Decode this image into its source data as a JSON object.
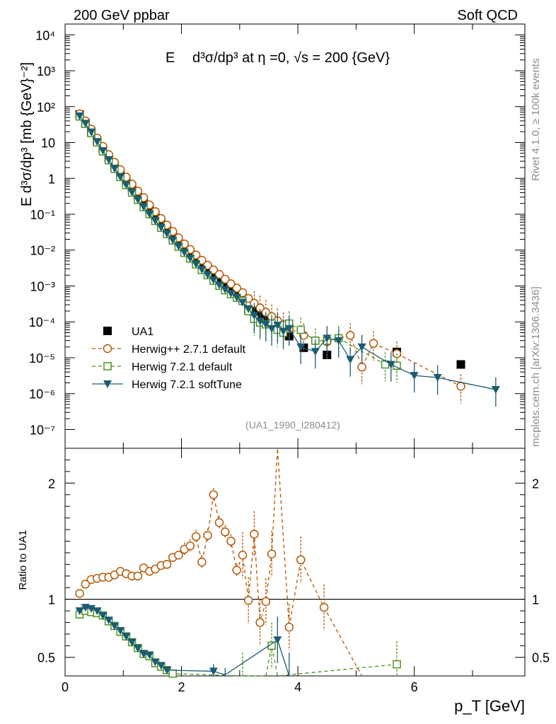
{
  "header": {
    "left": "200 GeV ppbar",
    "right": "Soft QCD"
  },
  "side": {
    "rivet": "Rivet 4.1.0, ≥ 100k events",
    "mcplots": "mcplots.cern.ch [arXiv:1306.3436]"
  },
  "chart_data": {
    "type": "scatter",
    "title_parts": {
      "e": "E",
      "deriv": "d³σ/dp³ at η =0, √s = 200 {GeV}"
    },
    "ylabel": "E d³σ/dp³ [mb {GeV}⁻²]",
    "xlabel": "p_T [GeV]",
    "analysis_tag": "(UA1_1990_I280412)",
    "ratio_ylabel": "Ratio to UA1",
    "xlim": [
      0,
      7.9
    ],
    "ylim_log": [
      3e-08,
      20000
    ],
    "ratio_ylim": [
      0.34,
      2.3
    ],
    "x_ticks": [
      "0",
      "2",
      "4",
      "6"
    ],
    "y_ticks": [
      "10⁴",
      "10³",
      "10²",
      "10",
      "1",
      "10⁻¹",
      "10⁻²",
      "10⁻³",
      "10⁻⁴",
      "10⁻⁵",
      "10⁻⁶",
      "10⁻⁷"
    ],
    "ratio_ticks": [
      "0.5",
      "1",
      "2"
    ],
    "series": [
      {
        "name": "UA1",
        "color": "#000000",
        "marker": "filled-square",
        "x": [
          0.25,
          0.35,
          0.45,
          0.55,
          0.65,
          0.75,
          0.85,
          0.95,
          1.05,
          1.15,
          1.25,
          1.35,
          1.45,
          1.55,
          1.65,
          1.75,
          1.85,
          1.95,
          2.05,
          2.15,
          2.25,
          2.35,
          2.45,
          2.55,
          2.65,
          2.75,
          2.85,
          2.95,
          3.05,
          3.15,
          3.25,
          3.35,
          3.45,
          3.55,
          3.65,
          3.75,
          3.85,
          4.1,
          4.5,
          5.7,
          6.8
        ],
        "y": [
          60,
          35,
          20,
          11,
          6.5,
          3.8,
          2.3,
          1.4,
          0.85,
          0.55,
          0.35,
          0.22,
          0.14,
          0.09,
          0.058,
          0.038,
          0.025,
          0.017,
          0.0115,
          0.0079,
          0.0055,
          0.0039,
          0.0028,
          0.0021,
          0.0016,
          0.0011,
          0.00082,
          0.00062,
          0.00045,
          0.00022,
          0.00019,
          0.00016,
          0.00013,
          0.0001,
          8.5e-05,
          6.7e-05,
          4e-05,
          1.9e-05,
          1.2e-05,
          1.45e-05,
          6.5e-06
        ]
      },
      {
        "name": "Herwig++ 2.7.1 default",
        "color": "#b35806",
        "marker": "open-circle",
        "line": "dashed",
        "x": [
          0.25,
          0.35,
          0.45,
          0.55,
          0.65,
          0.75,
          0.85,
          0.95,
          1.05,
          1.15,
          1.25,
          1.35,
          1.45,
          1.55,
          1.65,
          1.75,
          1.85,
          1.95,
          2.05,
          2.15,
          2.25,
          2.35,
          2.45,
          2.55,
          2.65,
          2.75,
          2.85,
          2.95,
          3.05,
          3.15,
          3.25,
          3.35,
          3.45,
          3.55,
          3.65,
          3.75,
          3.85,
          4.1,
          4.5,
          4.9,
          5.1,
          5.3,
          5.7,
          6.8
        ],
        "y": [
          63,
          40,
          23.5,
          13.3,
          7.8,
          4.6,
          2.8,
          1.75,
          1.08,
          0.69,
          0.44,
          0.29,
          0.182,
          0.118,
          0.076,
          0.05,
          0.033,
          0.022,
          0.0149,
          0.0104,
          0.0073,
          0.0052,
          0.0038,
          0.0028,
          0.0021,
          0.00155,
          0.00115,
          0.00087,
          0.00065,
          0.00045,
          0.00033,
          0.000245,
          0.000185,
          0.00014,
          0.000107,
          8.3e-05,
          6.5e-05,
          4.2e-05,
          2.8e-05,
          4.2e-05,
          5.5e-06,
          2.5e-05,
          1.3e-05,
          1.6e-06
        ],
        "ratio": {
          "x": [
            0.25,
            0.35,
            0.45,
            0.55,
            0.65,
            0.75,
            0.85,
            0.95,
            1.05,
            1.15,
            1.25,
            1.35,
            1.45,
            1.55,
            1.65,
            1.75,
            1.85,
            1.95,
            2.05,
            2.15,
            2.25,
            2.35,
            2.45,
            2.55,
            2.65,
            2.75,
            2.85,
            2.95,
            3.05,
            3.15,
            3.25,
            3.35,
            3.45,
            3.55,
            3.85,
            4.05,
            4.45
          ],
          "y": [
            1.05,
            1.13,
            1.17,
            1.18,
            1.19,
            1.19,
            1.21,
            1.24,
            1.22,
            1.2,
            1.2,
            1.27,
            1.24,
            1.26,
            1.29,
            1.3,
            1.36,
            1.38,
            1.43,
            1.46,
            1.54,
            1.32,
            1.55,
            1.9,
            1.66,
            1.58,
            1.5,
            1.25,
            1.38,
            0.99,
            1.56,
            0.8,
            0.98,
            1.39,
            0.76,
            1.34,
            0.93
          ],
          "extra_points": [
            [
              3.65,
              2.3
            ],
            [
              5.1,
              0.34
            ]
          ]
        }
      },
      {
        "name": "Herwig 7.2.1 default",
        "color": "#4d9221",
        "marker": "open-square",
        "line": "dashed",
        "x": [
          0.25,
          0.35,
          0.45,
          0.55,
          0.65,
          0.75,
          0.85,
          0.95,
          1.05,
          1.15,
          1.25,
          1.35,
          1.45,
          1.55,
          1.65,
          1.75,
          1.85,
          1.95,
          2.05,
          2.15,
          2.25,
          2.35,
          2.45,
          2.55,
          2.65,
          2.75,
          2.85,
          2.95,
          3.05,
          3.15,
          3.25,
          3.35,
          3.45,
          3.55,
          3.65,
          3.75,
          3.85,
          4.05,
          4.3,
          4.5,
          4.7,
          5.5,
          5.7
        ],
        "y": [
          53,
          33,
          18.2,
          10,
          5.6,
          3.2,
          1.85,
          1.09,
          0.65,
          0.4,
          0.25,
          0.158,
          0.1,
          0.065,
          0.042,
          0.028,
          0.0185,
          0.0124,
          0.0084,
          0.0058,
          0.004,
          0.0028,
          0.002,
          0.0014,
          0.00101,
          0.00076,
          0.00059,
          0.00047,
          0.00038,
          0.0002,
          0.00012,
          9.5e-05,
          8.49e-05,
          8.99e-05,
          5.99e-05,
          4.99e-05,
          8.99e-05,
          5.99e-05,
          2.99e-05,
          2.99e-05,
          3.49e-05,
          6.5e-06,
          6e-06
        ],
        "ratio": {
          "x": [
            0.25,
            0.35,
            0.45,
            0.55,
            0.65,
            0.75,
            0.85,
            0.95,
            1.05,
            1.15,
            1.25,
            1.35,
            1.45,
            1.55,
            1.65,
            1.75,
            1.85,
            3.05,
            3.55,
            5.7
          ],
          "y": [
            0.87,
            0.9,
            0.89,
            0.88,
            0.86,
            0.81,
            0.77,
            0.72,
            0.68,
            0.63,
            0.58,
            0.53,
            0.51,
            0.45,
            0.42,
            0.39,
            0.36,
            0.34,
            0.6,
            0.44
          ],
          "extra_points": [
            [
              3.45,
              0.34
            ],
            [
              3.65,
              0.34
            ]
          ]
        }
      },
      {
        "name": "Herwig 7.2.1 softTune",
        "color": "#1c5c73",
        "marker": "filled-triangle-down",
        "line": "solid",
        "x": [
          0.25,
          0.35,
          0.45,
          0.55,
          0.65,
          0.75,
          0.85,
          0.95,
          1.05,
          1.15,
          1.25,
          1.35,
          1.45,
          1.55,
          1.65,
          1.75,
          1.85,
          1.95,
          2.05,
          2.15,
          2.25,
          2.35,
          2.45,
          2.55,
          2.65,
          2.75,
          2.85,
          2.95,
          3.05,
          3.15,
          3.25,
          3.35,
          3.45,
          3.55,
          3.65,
          3.75,
          3.85,
          4.05,
          4.3,
          4.5,
          4.7,
          4.9,
          5.1,
          5.6,
          6,
          6.4,
          7.4
        ],
        "y": [
          55,
          34,
          19.5,
          10.6,
          5.9,
          3.3,
          1.9,
          1.1,
          0.66,
          0.41,
          0.255,
          0.16,
          0.101,
          0.066,
          0.043,
          0.029,
          0.0191,
          0.0128,
          0.0087,
          0.006,
          0.0041,
          0.0029,
          0.00205,
          0.00148,
          0.00107,
          0.0008,
          0.00062,
          0.00048,
          0.00035,
          0.00023,
          0.00015,
          0.000105,
          8.49e-05,
          6.49e-05,
          7.99e-05,
          5.49e-05,
          6.49e-05,
          1.99e-05,
          1.49e-05,
          3.49e-05,
          2.99e-05,
          8.9e-06,
          1.99e-05,
          6.5e-06,
          3.2e-06,
          2.8e-06,
          1.3e-06
        ],
        "ratio": {
          "x": [
            0.25,
            0.35,
            0.45,
            0.55,
            0.65,
            0.75,
            0.85,
            0.95,
            1.05,
            1.15,
            1.25,
            1.35,
            1.45,
            1.55,
            1.65,
            1.75,
            2.55,
            2.75,
            3.65,
            3.85
          ],
          "y": [
            0.9,
            0.93,
            0.92,
            0.9,
            0.86,
            0.82,
            0.77,
            0.73,
            0.68,
            0.63,
            0.58,
            0.53,
            0.52,
            0.46,
            0.43,
            0.39,
            0.38,
            0.35,
            0.65,
            0.34
          ],
          "extra_points": []
        }
      }
    ],
    "legend": [
      "UA1",
      "Herwig++ 2.7.1 default",
      "Herwig 7.2.1 default",
      "Herwig 7.2.1 softTune"
    ]
  }
}
